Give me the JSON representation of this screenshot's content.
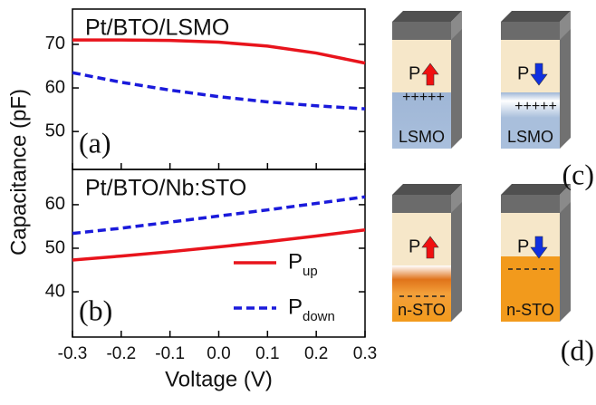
{
  "chart_data": [
    {
      "type": "line",
      "title": "Pt/BTO/LSMO",
      "annotation": "(a)",
      "ylabel": "Capacitance (pF)",
      "x": [
        -0.3,
        -0.2,
        -0.1,
        0,
        0.1,
        0.2,
        0.3
      ],
      "xlim": [
        -0.3,
        0.3
      ],
      "series": [
        {
          "name": "P",
          "subscript": "up",
          "color": "#e8141c",
          "dash": false,
          "values": [
            71,
            71,
            70.9,
            70.5,
            69.6,
            68,
            65.7
          ]
        },
        {
          "name": "P",
          "subscript": "down",
          "color": "#1a1adb",
          "dash": true,
          "values": [
            63.5,
            61.3,
            59.5,
            58,
            56.8,
            55.9,
            55.2
          ]
        }
      ],
      "ylim": [
        41.3,
        78.1
      ],
      "yticks": [
        50,
        60,
        70
      ]
    },
    {
      "type": "line",
      "title": "Pt/BTO/Nb:STO",
      "annotation": "(b)",
      "xlabel": "Voltage (V)",
      "x": [
        -0.3,
        -0.2,
        -0.1,
        0,
        0.1,
        0.2,
        0.3
      ],
      "xlim": [
        -0.3,
        0.3
      ],
      "xticks": [
        -0.3,
        -0.2,
        -0.1,
        {
          "value": 0,
          "label": "0.0"
        },
        0.1,
        0.2,
        0.3
      ],
      "series": [
        {
          "name": "P",
          "subscript": "up",
          "color": "#e8141c",
          "dash": false,
          "values": [
            47.3,
            48.2,
            49.2,
            50.3,
            51.5,
            52.8,
            54.2
          ]
        },
        {
          "name": "P",
          "subscript": "down",
          "color": "#1a1adb",
          "dash": true,
          "values": [
            53.4,
            54.6,
            56,
            57.4,
            58.8,
            60.3,
            61.8
          ]
        }
      ],
      "ylim": [
        29.6,
        68.1
      ],
      "yticks": [
        40,
        50,
        60
      ],
      "legend": "lower right"
    }
  ],
  "diagrams": {
    "labels": [
      "(c)",
      "(d)"
    ],
    "blocks": [
      {
        "label": "P",
        "charge": "+++++",
        "substrate": "LSMO"
      },
      {
        "label": "P",
        "charge": "+++++",
        "substrate": "LSMO"
      },
      {
        "label": "P",
        "substrate": "n-STO"
      },
      {
        "label": "P",
        "substrate": "n-STO"
      }
    ]
  }
}
